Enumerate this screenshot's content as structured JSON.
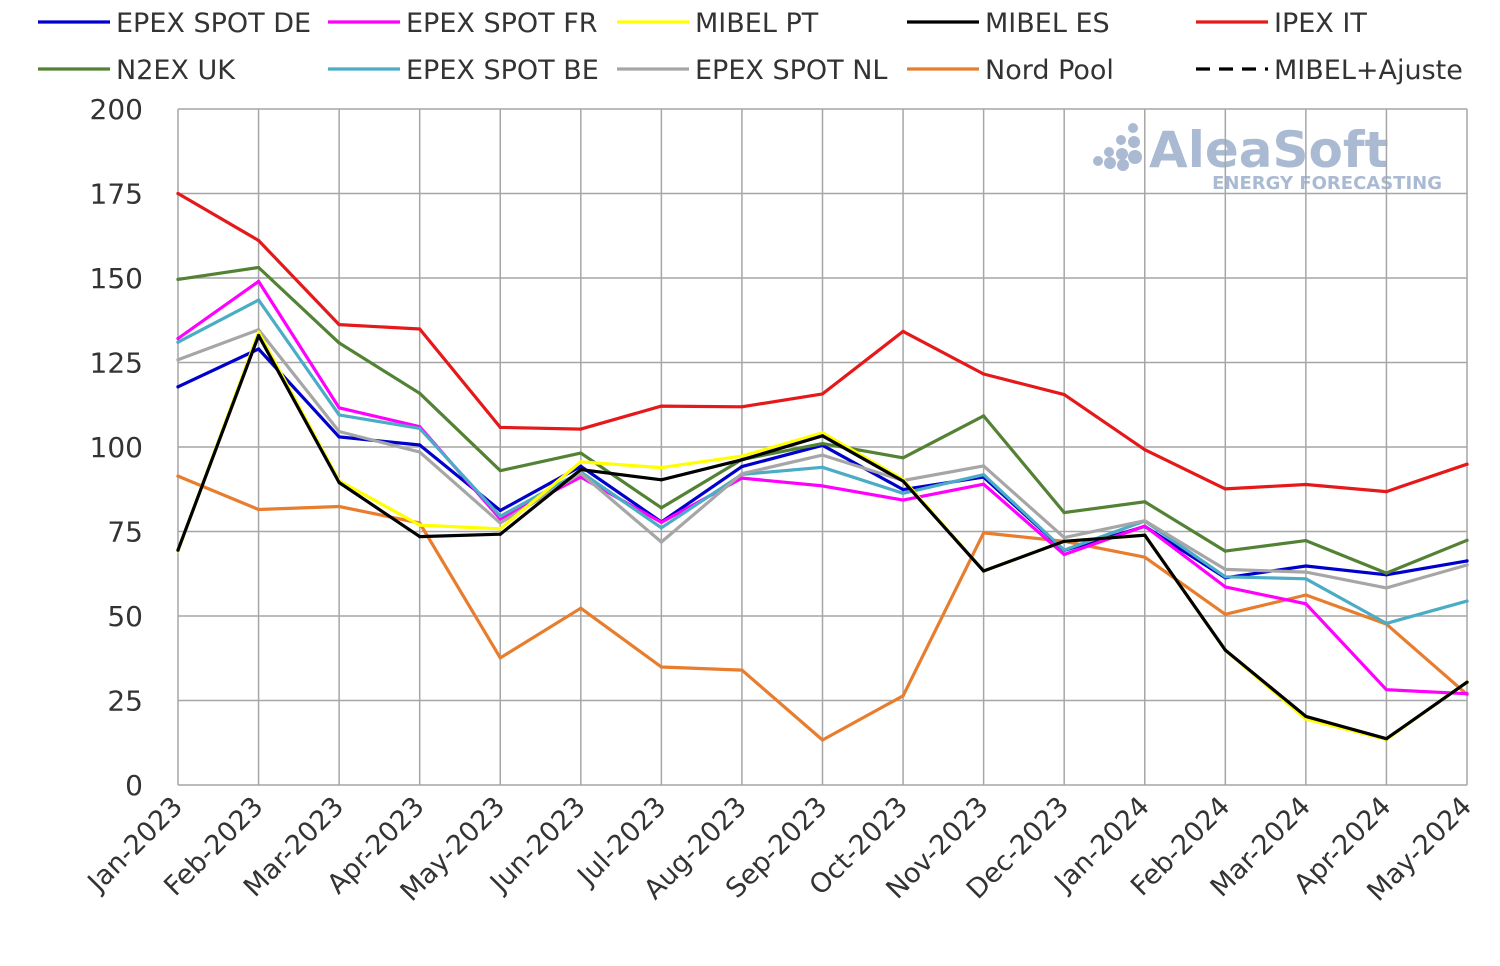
{
  "chart_data": {
    "type": "line",
    "title": "",
    "xlabel": "",
    "ylabel": "",
    "ylim": [
      0,
      200
    ],
    "yticks": [
      "0",
      "25",
      "50",
      "75",
      "100",
      "125",
      "150",
      "175",
      "200"
    ],
    "grid": true,
    "legend_position": "top",
    "categories": [
      "Jan-2023",
      "Feb-2023",
      "Mar-2023",
      "Apr-2023",
      "May-2023",
      "Jun-2023",
      "Jul-2023",
      "Aug-2023",
      "Sep-2023",
      "Oct-2023",
      "Nov-2023",
      "Dec-2023",
      "Jan-2024",
      "Feb-2024",
      "Mar-2024",
      "Apr-2024",
      "May-2024"
    ],
    "series": [
      {
        "name": "Nord Pool",
        "color": "#e87d2e",
        "dash": false,
        "values": [
          91.4,
          81.5,
          82.4,
          77.5,
          37.6,
          52.3,
          34.9,
          34.0,
          13.3,
          26.4,
          74.6,
          72.1,
          67.4,
          50.5,
          56.2,
          47.6,
          26.8
        ]
      },
      {
        "name": "EPEX SPOT DE",
        "color": "#0000cc",
        "dash": false,
        "values": [
          117.8,
          129.0,
          103.0,
          100.6,
          81.2,
          94.3,
          77.8,
          94.2,
          100.5,
          87.4,
          91.1,
          69.4,
          76.5,
          61.3,
          64.8,
          62.2,
          66.3
        ]
      },
      {
        "name": "EPEX SPOT FR",
        "color": "#ff00ff",
        "dash": false,
        "values": [
          132.1,
          149.0,
          111.6,
          106.0,
          78.7,
          91.1,
          77.7,
          90.8,
          88.5,
          84.3,
          89.0,
          68.2,
          76.6,
          58.6,
          53.6,
          28.2,
          27.0
        ]
      },
      {
        "name": "EPEX SPOT BE",
        "color": "#4bacc6",
        "dash": false,
        "values": [
          131.0,
          143.5,
          109.5,
          105.5,
          79.5,
          92.6,
          76.1,
          91.9,
          94.0,
          86.3,
          91.8,
          69.5,
          78.1,
          61.6,
          61.0,
          47.8,
          54.4
        ]
      },
      {
        "name": "EPEX SPOT NL",
        "color": "#a6a6a6",
        "dash": false,
        "values": [
          125.8,
          134.7,
          104.6,
          98.5,
          77.5,
          92.2,
          71.9,
          92.1,
          97.6,
          90.1,
          94.4,
          73.2,
          78.2,
          63.8,
          63.0,
          58.3,
          65.1
        ]
      },
      {
        "name": "N2EX UK",
        "color": "#548235",
        "dash": false,
        "values": [
          149.6,
          153.1,
          130.8,
          115.9,
          93.0,
          98.2,
          82.0,
          96.3,
          101.0,
          96.8,
          109.2,
          80.6,
          83.8,
          69.2,
          72.3,
          62.7,
          72.4
        ]
      },
      {
        "name": "IPEX IT",
        "color": "#e5191a",
        "dash": false,
        "values": [
          175.0,
          161.1,
          136.2,
          134.9,
          105.8,
          105.3,
          112.1,
          111.9,
          115.7,
          134.2,
          121.6,
          115.5,
          99.2,
          87.6,
          88.9,
          86.8,
          94.9
        ]
      },
      {
        "name": "MIBEL PT",
        "color": "#ffff00",
        "dash": false,
        "values": [
          69.3,
          134.0,
          90.0,
          76.9,
          75.8,
          95.6,
          93.9,
          97.3,
          104.2,
          90.4,
          63.3,
          72.1,
          73.9,
          39.9,
          19.5,
          13.5,
          30.5
        ]
      },
      {
        "name": "MIBEL ES",
        "color": "#000000",
        "dash": false,
        "values": [
          69.5,
          133.0,
          89.5,
          73.5,
          74.2,
          93.3,
          90.3,
          96.2,
          103.3,
          89.9,
          63.3,
          72.1,
          73.9,
          39.9,
          20.3,
          13.7,
          30.4
        ]
      },
      {
        "name": "MIBEL+Ajuste",
        "color": "#000000",
        "dash": true,
        "values": [
          71.0,
          134.0,
          89.9,
          73.8,
          74.4,
          93.6,
          90.6,
          96.4,
          103.5,
          90.0,
          63.4,
          72.2,
          74.0,
          40.0,
          20.3,
          13.7,
          30.5
        ]
      }
    ],
    "legend_order": [
      "EPEX SPOT DE",
      "EPEX SPOT FR",
      "MIBEL PT",
      "MIBEL ES",
      "IPEX IT",
      "N2EX UK",
      "EPEX SPOT BE",
      "EPEX SPOT NL",
      "Nord Pool",
      "MIBEL+Ajuste"
    ]
  },
  "watermark": {
    "brand": "AleaSoft",
    "tagline": "ENERGY FORECASTING"
  }
}
